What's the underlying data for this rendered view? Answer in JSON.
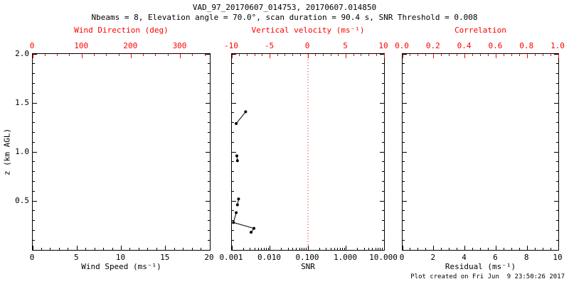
{
  "header": {
    "title": "VAD_97_20170607_014753, 20170607.014850",
    "subtitle": "Nbeams = 8, Elevation angle = 70.0°, scan duration = 90.4 s, SNR Threshold = 0.008"
  },
  "footer": {
    "created": "Plot created on Fri Jun  9 23:50:26 2017"
  },
  "colors": {
    "top_axis": "#ff0000",
    "axis": "#000000",
    "refline": "#ff0000",
    "data": "#000000"
  },
  "chart_data": [
    {
      "panel": "wind",
      "type": "scatter",
      "xlabel": "Wind Speed (ms⁻¹)",
      "xlim": [
        0,
        20
      ],
      "x_ticks": [
        0,
        5,
        10,
        15,
        20
      ],
      "x_tick_labels": [
        "0",
        "5",
        "10",
        "15",
        "20"
      ],
      "x_minor_step": 1,
      "xlabel_top": "Wind Direction (deg)",
      "xlim_top": [
        0,
        360
      ],
      "x_ticks_top": [
        0,
        100,
        200,
        300
      ],
      "x_tick_labels_top": [
        "0",
        "100",
        "200",
        "300"
      ],
      "x_top_minor_step": 25,
      "ylabel": "z (km AGL)",
      "ylim": [
        0,
        2
      ],
      "y_ticks": [
        0.5,
        1.0,
        1.5,
        2.0
      ],
      "y_tick_labels": [
        "0.5",
        "1.0",
        "1.5",
        "2.0"
      ],
      "y_minor_step": 0.1,
      "grid": false,
      "series": []
    },
    {
      "panel": "snr",
      "type": "line",
      "xscale": "log",
      "xlabel": "SNR",
      "xlim": [
        0.001,
        10
      ],
      "x_ticks": [
        0.001,
        0.01,
        0.1,
        1,
        10
      ],
      "x_tick_labels": [
        "0.001",
        "0.010",
        "0.100",
        "1.000",
        "10.000"
      ],
      "xlabel_top": "Vertical velocity (ms⁻¹)",
      "xlim_top": [
        -10,
        10
      ],
      "x_ticks_top": [
        -10,
        -5,
        0,
        5,
        10
      ],
      "x_tick_labels_top": [
        "-10",
        "-5",
        "0",
        "5",
        "10"
      ],
      "x_top_minor_step": 1,
      "ylim": [
        0,
        2
      ],
      "y_ticks": [
        0.5,
        1.0,
        1.5,
        2.0
      ],
      "y_tick_labels": [],
      "y_minor_step": 0.1,
      "grid": false,
      "refline_x": 0.1,
      "refline_color": "#ff0000",
      "series": [
        {
          "name": "snr-profile",
          "color": "#000000",
          "marker": "circle",
          "segments": [
            [
              [
                0.0023,
                1.41
              ],
              [
                0.0013,
                1.29
              ]
            ],
            [
              [
                0.00135,
                0.96
              ],
              [
                0.0014,
                0.91
              ]
            ],
            [
              [
                0.0015,
                0.52
              ],
              [
                0.0014,
                0.46
              ]
            ],
            [
              [
                0.0013,
                0.38
              ],
              [
                0.0011,
                0.28
              ],
              [
                0.0038,
                0.22
              ],
              [
                0.0032,
                0.18
              ]
            ]
          ]
        }
      ]
    },
    {
      "panel": "residual",
      "type": "scatter",
      "xlabel": "Residual (ms⁻¹)",
      "xlim": [
        0,
        10
      ],
      "x_ticks": [
        0,
        2,
        4,
        6,
        8,
        10
      ],
      "x_tick_labels": [
        "0",
        "2",
        "4",
        "6",
        "8",
        "10"
      ],
      "x_minor_step": 0.5,
      "xlabel_top": "Correlation",
      "xlim_top": [
        0,
        1
      ],
      "x_ticks_top": [
        0,
        0.2,
        0.4,
        0.6,
        0.8,
        1.0
      ],
      "x_tick_labels_top": [
        "0.0",
        "0.2",
        "0.4",
        "0.6",
        "0.8",
        "1.0"
      ],
      "x_top_minor_step": 0.05,
      "ylim": [
        0,
        2
      ],
      "y_ticks": [
        0.5,
        1.0,
        1.5,
        2.0
      ],
      "y_tick_labels": [],
      "y_minor_step": 0.1,
      "grid": false,
      "series": []
    }
  ]
}
